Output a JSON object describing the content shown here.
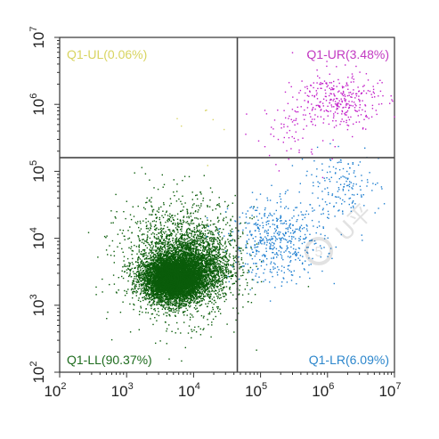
{
  "chart_data": {
    "type": "scatter",
    "title": "",
    "xlabel": "",
    "ylabel": "",
    "xscale": "log",
    "yscale": "log",
    "xlim": [
      100,
      10000000
    ],
    "ylim": [
      100,
      10000000
    ],
    "x_ticks": [
      {
        "base": "10",
        "exp": "2"
      },
      {
        "base": "10",
        "exp": "3"
      },
      {
        "base": "10",
        "exp": "4"
      },
      {
        "base": "10",
        "exp": "5"
      },
      {
        "base": "10",
        "exp": "6"
      },
      {
        "base": "10",
        "exp": "7"
      }
    ],
    "y_ticks": [
      {
        "base": "10",
        "exp": "2"
      },
      {
        "base": "10",
        "exp": "3"
      },
      {
        "base": "10",
        "exp": "4"
      },
      {
        "base": "10",
        "exp": "5"
      },
      {
        "base": "10",
        "exp": "6"
      },
      {
        "base": "10",
        "exp": "7"
      }
    ],
    "gate": {
      "x": 45000,
      "y": 160000
    },
    "grid": false,
    "quadrants": [
      {
        "label": "Q1-UL(0.06%)",
        "percent": 0.06,
        "color": "#d8d460"
      },
      {
        "label": "Q1-UR(3.48%)",
        "percent": 3.48,
        "color": "#c23ac2"
      },
      {
        "label": "Q1-LL(90.37%)",
        "percent": 90.37,
        "color": "#1d6b1d"
      },
      {
        "label": "Q1-LR(6.09%)",
        "percent": 6.09,
        "color": "#2b86cc"
      }
    ],
    "series": [
      {
        "values": [
          {
            "x": 5000,
            "y": 2500,
            "sx": 0.22,
            "sy": 0.16,
            "weight": 0.62
          },
          {
            "x": 9000,
            "y": 4000,
            "sx": 0.3,
            "sy": 0.25,
            "weight": 0.22
          },
          {
            "x": 6000,
            "y": 5000,
            "sx": 0.45,
            "sy": 0.45,
            "weight": 0.16
          }
        ],
        "color": "#0a5c0a",
        "mass": 0.9037
      },
      {
        "values": [
          {
            "x": 180000,
            "y": 9000,
            "sx": 0.35,
            "sy": 0.3,
            "weight": 0.75
          },
          {
            "x": 1500000,
            "y": 60000,
            "sx": 0.3,
            "sy": 0.25,
            "weight": 0.25
          }
        ],
        "color": "#1f7fd0",
        "mass": 0.0609
      },
      {
        "values": [
          {
            "x": 1500000,
            "y": 1200000,
            "sx": 0.3,
            "sy": 0.22,
            "weight": 0.8
          },
          {
            "x": 300000,
            "y": 500000,
            "sx": 0.3,
            "sy": 0.28,
            "weight": 0.2
          }
        ],
        "color": "#c21fc9",
        "mass": 0.0348
      },
      {
        "values": [
          {
            "x": 20000,
            "y": 500000,
            "sx": 0.25,
            "sy": 0.25,
            "weight": 1.0
          }
        ],
        "color": "#d9d46a",
        "mass": 0.0006
      }
    ]
  },
  "watermark": {
    "text": "U平"
  }
}
